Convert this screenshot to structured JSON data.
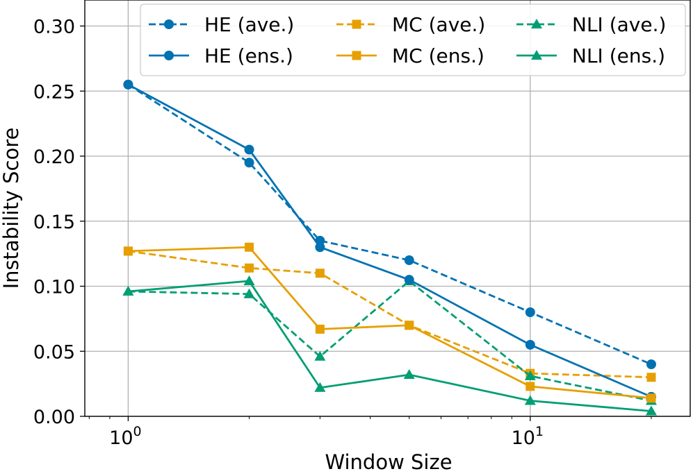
{
  "chart_data": {
    "type": "line",
    "title": "",
    "xlabel": "Window Size",
    "ylabel": "Instability Score",
    "xscale": "log",
    "xlim": [
      0.78,
      25
    ],
    "ylim": [
      0,
      0.32
    ],
    "x": [
      1,
      2,
      3,
      5,
      10,
      20
    ],
    "x_tick_labels": [
      {
        "value": 1,
        "base": "10",
        "exp": "0"
      },
      {
        "value": 10,
        "base": "10",
        "exp": "1"
      }
    ],
    "y_ticks": [
      0.0,
      0.05,
      0.1,
      0.15,
      0.2,
      0.25,
      0.3
    ],
    "y_tick_labels": [
      "0.00",
      "0.05",
      "0.10",
      "0.15",
      "0.20",
      "0.25",
      "0.30"
    ],
    "grid": true,
    "legend_position": "top-right",
    "series": [
      {
        "name": "HE (ave.)",
        "values": [
          0.255,
          0.195,
          0.135,
          0.12,
          0.08,
          0.04
        ],
        "color": "#0072B2",
        "dash": true,
        "marker": "circle"
      },
      {
        "name": "MC (ave.)",
        "values": [
          0.127,
          0.114,
          0.11,
          0.07,
          0.033,
          0.03
        ],
        "color": "#E69F00",
        "dash": true,
        "marker": "square"
      },
      {
        "name": "NLI (ave.)",
        "values": [
          0.096,
          0.094,
          0.046,
          0.104,
          0.031,
          0.012
        ],
        "color": "#009E73",
        "dash": true,
        "marker": "triangle"
      },
      {
        "name": "HE (ens.)",
        "values": [
          0.255,
          0.205,
          0.13,
          0.105,
          0.055,
          0.015
        ],
        "color": "#0072B2",
        "dash": false,
        "marker": "circle"
      },
      {
        "name": "MC (ens.)",
        "values": [
          0.127,
          0.13,
          0.067,
          0.07,
          0.023,
          0.014
        ],
        "color": "#E69F00",
        "dash": false,
        "marker": "square"
      },
      {
        "name": "NLI (ens.)",
        "values": [
          0.096,
          0.104,
          0.022,
          0.032,
          0.012,
          0.004
        ],
        "color": "#009E73",
        "dash": false,
        "marker": "triangle"
      }
    ]
  }
}
